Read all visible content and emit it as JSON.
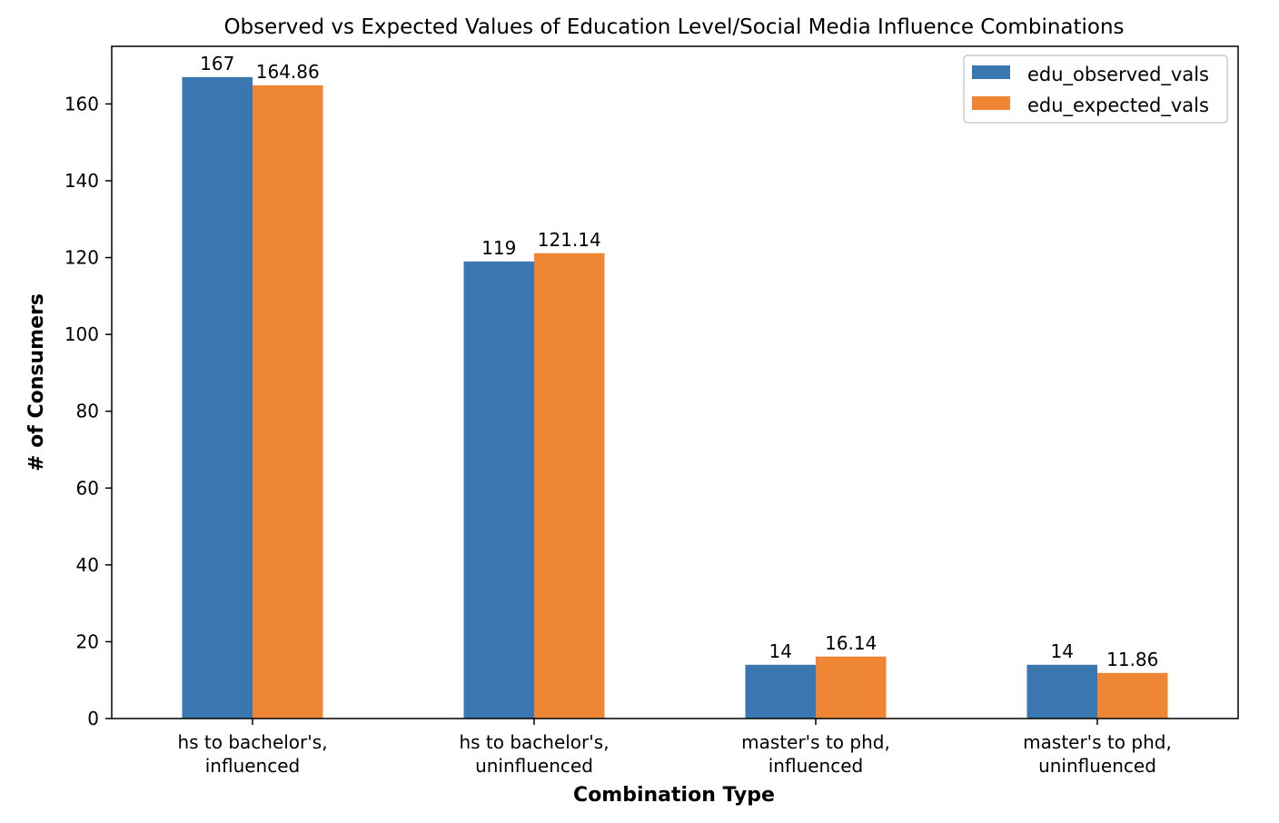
{
  "chart_data": {
    "type": "bar",
    "title": "Observed vs Expected Values of Education Level/Social Media Influence Combinations",
    "xlabel": "Combination Type",
    "ylabel": "# of Consumers",
    "categories": [
      [
        "hs to bachelor's,",
        "influenced"
      ],
      [
        "hs to bachelor's,",
        "uninfluenced"
      ],
      [
        "master's to phd,",
        "influenced"
      ],
      [
        "master's to phd,",
        "uninfluenced"
      ]
    ],
    "series": [
      {
        "name": "edu_observed_vals",
        "color": "#3a76af",
        "values": [
          167,
          119,
          14,
          14
        ],
        "labels": [
          "167",
          "119",
          "14",
          "14"
        ]
      },
      {
        "name": "edu_expected_vals",
        "color": "#ef8636",
        "values": [
          164.86,
          121.14,
          16.14,
          11.86
        ],
        "labels": [
          "164.86",
          "121.14",
          "16.14",
          "11.86"
        ]
      }
    ],
    "ylim": [
      0,
      175
    ],
    "yticks": [
      0,
      20,
      40,
      60,
      80,
      100,
      120,
      140,
      160
    ],
    "grid": false,
    "legend_position": "top-right"
  }
}
